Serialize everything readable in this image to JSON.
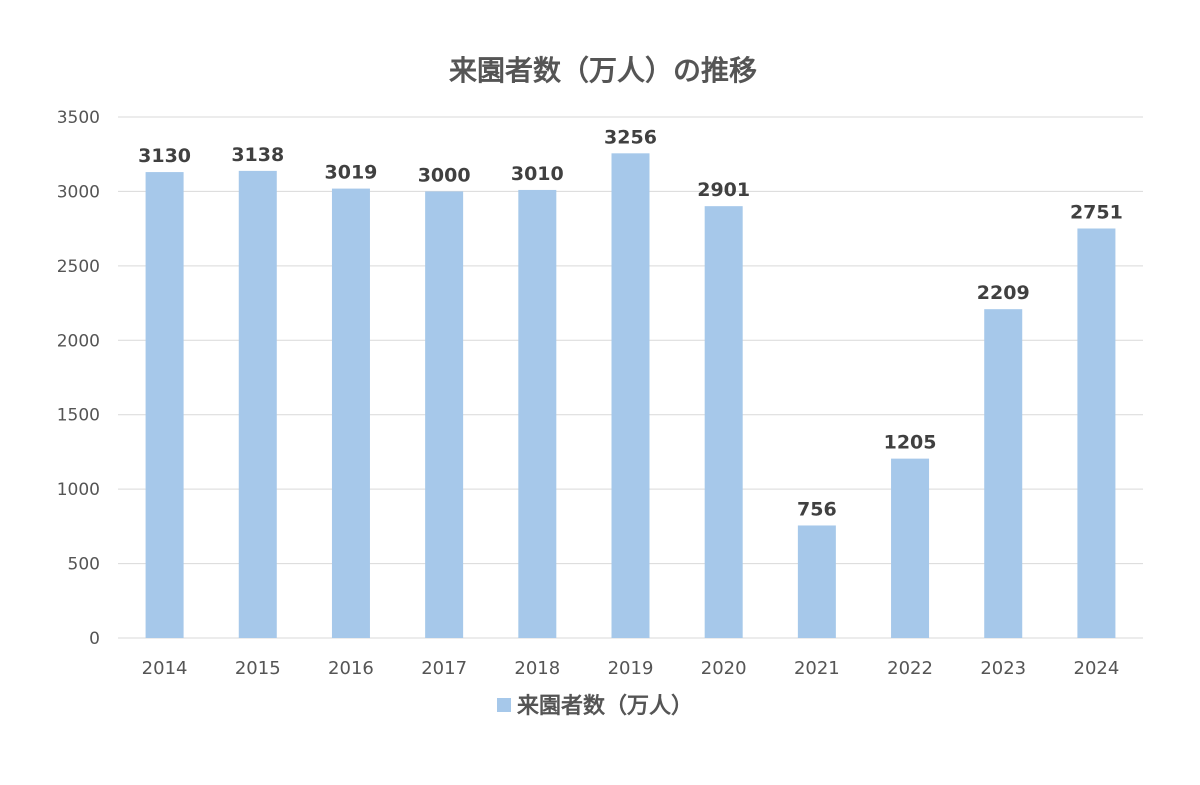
{
  "chart_data": {
    "type": "bar",
    "title": "来園者数（万人）の推移",
    "categories": [
      "2014",
      "2015",
      "2016",
      "2017",
      "2018",
      "2019",
      "2020",
      "2021",
      "2022",
      "2023",
      "2024"
    ],
    "series": [
      {
        "name": "来園者数（万人）",
        "values": [
          3130,
          3138,
          3019,
          3000,
          3010,
          3256,
          2901,
          756,
          1205,
          2209,
          2751
        ],
        "color": "#a6c8ea"
      }
    ],
    "ylim": [
      0,
      3500
    ],
    "yticks": [
      "0",
      "500",
      "1000",
      "1500",
      "2000",
      "2500",
      "3000",
      "3500"
    ],
    "data_labels": true,
    "grid": true,
    "legend_position": "bottom"
  }
}
